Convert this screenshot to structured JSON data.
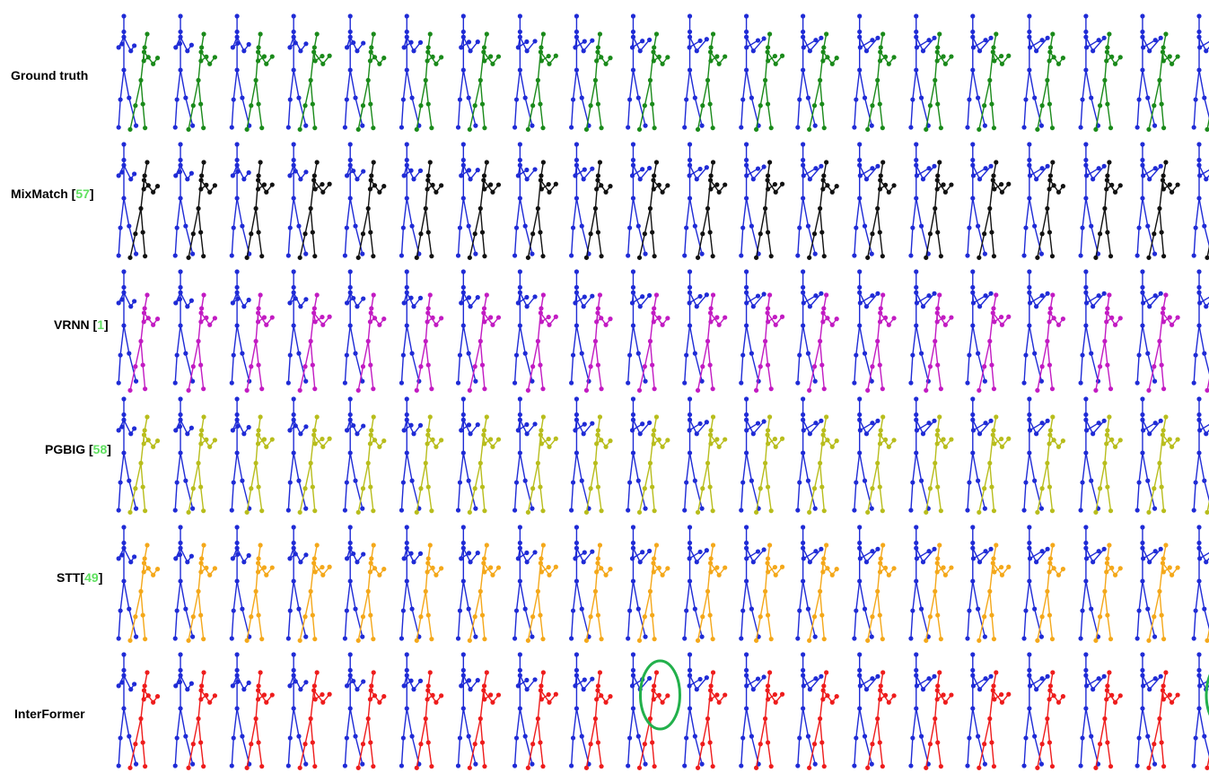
{
  "colors": {
    "observed": "#1f2bd6",
    "highlight": "#22b04b",
    "reference": "#5fe05f"
  },
  "rows": [
    {
      "id": "ground-truth",
      "label": "Ground truth",
      "ref": "",
      "color": "#1a8a1a"
    },
    {
      "id": "mixmatch",
      "label": "MixMatch [",
      "ref": "57",
      "suffix": "]",
      "color": "#111111"
    },
    {
      "id": "vrnn",
      "label": "VRNN [",
      "ref": "1",
      "suffix": "]",
      "color": "#c21bc2"
    },
    {
      "id": "pgbig",
      "label": "PGBIG [",
      "ref": "58",
      "suffix": "]",
      "color": "#b8bd1c"
    },
    {
      "id": "stt",
      "label": "STT[",
      "ref": "49",
      "suffix": "]",
      "color": "#f4a81a"
    },
    {
      "id": "interformer",
      "label": "InterFormer",
      "ref": "",
      "color": "#ee1c1c"
    }
  ],
  "frames": 20,
  "highlight_frames_interformer": [
    9,
    19
  ]
}
